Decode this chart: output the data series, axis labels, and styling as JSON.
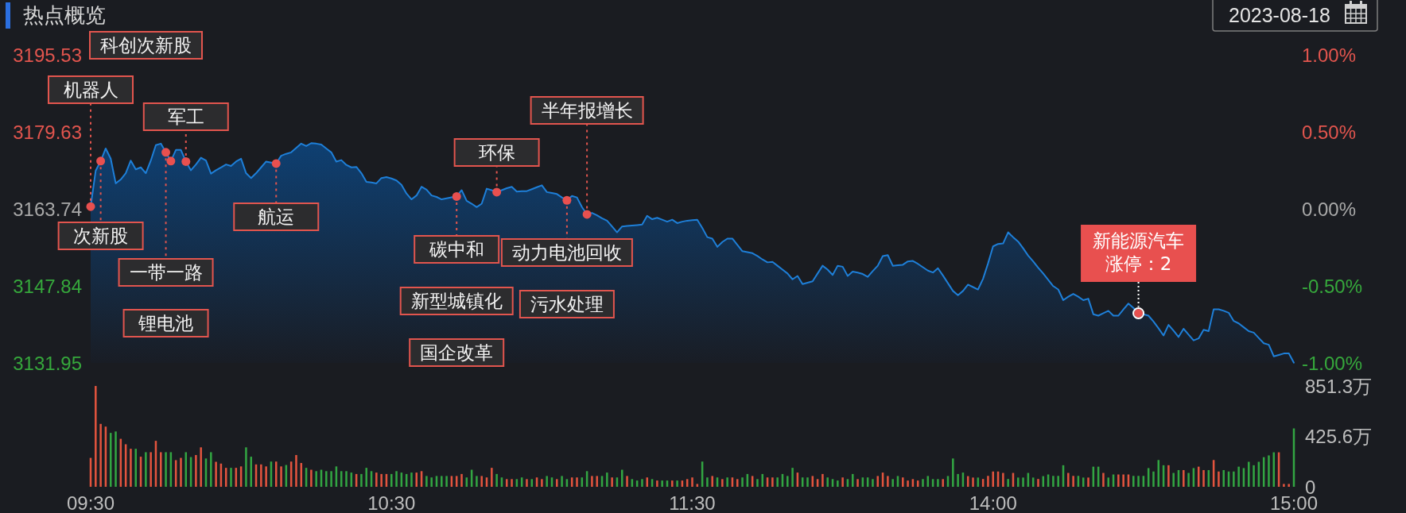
{
  "chart_data": [
    {
      "type": "area",
      "title": "热点概览",
      "subtitle": "2023-08-18",
      "tick_labels": "y",
      "categories": [
        null,
        null,
        null,
        null,
        null,
        null,
        null,
        null,
        null,
        null,
        null,
        null,
        null,
        null,
        null,
        null,
        null,
        null,
        null,
        null,
        null,
        null,
        null,
        null,
        null,
        null,
        null,
        null,
        null,
        null,
        null,
        null,
        null,
        null,
        null,
        null,
        null,
        null,
        null,
        null,
        null,
        null,
        null,
        null,
        null,
        null,
        null,
        null,
        null,
        null,
        null,
        null,
        null,
        null,
        null,
        null,
        null,
        null,
        null,
        null,
        null,
        null,
        null,
        null,
        null,
        null,
        null,
        null,
        null,
        null,
        null,
        null,
        null,
        null,
        null,
        null,
        null,
        null,
        null,
        null,
        null,
        null,
        null,
        null,
        null,
        null,
        null,
        null,
        null,
        null,
        null,
        null,
        null,
        null,
        null,
        null,
        null,
        null,
        null,
        null,
        null,
        null,
        null,
        null,
        null,
        null,
        null,
        null,
        null,
        null,
        null,
        null,
        null,
        null,
        null,
        null,
        null,
        null,
        null,
        null,
        null,
        null,
        null,
        null,
        null,
        null,
        null,
        null,
        null,
        null,
        null,
        null,
        null,
        null,
        null,
        null,
        null,
        null,
        null,
        null,
        null,
        null,
        null,
        null,
        null,
        null,
        null,
        null,
        null,
        null,
        null,
        null,
        null,
        null,
        null,
        null,
        null,
        null,
        null,
        null,
        null,
        null,
        null,
        null,
        null,
        null,
        null,
        null,
        null,
        null,
        null,
        null,
        null,
        null,
        null,
        null,
        null,
        null,
        null,
        null,
        null,
        null,
        null,
        null,
        null,
        null,
        null,
        null,
        null,
        null,
        null,
        null,
        null,
        null,
        null,
        null,
        null,
        null,
        null,
        null,
        null,
        null,
        null,
        null,
        null,
        null,
        null,
        null,
        null,
        null,
        null,
        null,
        null,
        null,
        null,
        null,
        null,
        null,
        null,
        null,
        null,
        null,
        null,
        null,
        null,
        null,
        null,
        null,
        null,
        null,
        null,
        null,
        null,
        null,
        null,
        null,
        null,
        null,
        null,
        null,
        null
      ],
      "ylim": [
        3131.95,
        3195.53
      ],
      "yticks": [
        3131.95,
        3147.84,
        3163.74,
        3179.63,
        3195.53
      ],
      "y2lim": [
        -1,
        1
      ],
      "y2ticks": [
        {
          "value": -1,
          "label": "-1.00%"
        },
        {
          "value": -0.5,
          "label": "-0.50%"
        },
        {
          "value": 0,
          "label": "0.00%"
        },
        {
          "value": 0.5,
          "label": "0.50%"
        },
        {
          "value": 1,
          "label": "1.00%"
        }
      ],
      "series": [
        {
          "color": "#1e7fd8",
          "values": [
            3164.2,
            3171.6,
            3173.6,
            3176.2,
            3174.1,
            3169.0,
            3169.8,
            3171.1,
            3173.7,
            3171.9,
            3172.3,
            3171.1,
            3173.7,
            3176.9,
            3177.2,
            3175.4,
            3173.6,
            3175.9,
            3175.9,
            3173.5,
            3171.7,
            3172.9,
            3174.3,
            3173.7,
            3171.0,
            3171.7,
            3172.3,
            3172.9,
            3172.6,
            3173.5,
            3174.1,
            3171.1,
            3170.1,
            3171.1,
            3172.3,
            3173.5,
            3173.3,
            3173.1,
            3174.7,
            3175.1,
            3175.4,
            3176.3,
            3177.2,
            3176.7,
            3177.3,
            3177.2,
            3177.0,
            3176.2,
            3175.4,
            3173.5,
            3173.8,
            3172.8,
            3172.3,
            3172.4,
            3171.1,
            3169.3,
            3169.2,
            3169.0,
            3170.1,
            3170.3,
            3170.0,
            3169.6,
            3168.7,
            3166.9,
            3165.7,
            3166.5,
            3168.3,
            3167.7,
            3166.5,
            3166.2,
            3165.7,
            3165.9,
            3166.1,
            3166.3,
            3167.6,
            3165.4,
            3164.8,
            3164.1,
            3164.8,
            3167.9,
            3167.6,
            3167.2,
            3167.6,
            3168.0,
            3168.3,
            3167.3,
            3167.4,
            3167.4,
            3167.8,
            3168.2,
            3168.6,
            3167.2,
            3167.0,
            3166.8,
            3166.1,
            3165.5,
            3166.4,
            3166.1,
            3164.1,
            3162.6,
            3162.9,
            3162.4,
            3161.8,
            3161.3,
            3160.1,
            3158.9,
            3160.1,
            3160.2,
            3160.3,
            3160.4,
            3160.5,
            3162.3,
            3161.6,
            3161.9,
            3161.5,
            3161.1,
            3161.5,
            3160.8,
            3161.1,
            3161.3,
            3161.4,
            3161.5,
            3159.8,
            3157.9,
            3157.6,
            3155.9,
            3156.9,
            3157.6,
            3157.6,
            3156.3,
            3155.0,
            3154.8,
            3154.6,
            3154.0,
            3153.3,
            3152.7,
            3152.8,
            3152.0,
            3151.2,
            3150.4,
            3149.2,
            3149.9,
            3148.2,
            3148.5,
            3148.8,
            3150.4,
            3152.0,
            3151.2,
            3150.1,
            3152.0,
            3151.8,
            3149.9,
            3150.8,
            3150.6,
            3150.3,
            3149.7,
            3150.9,
            3152.0,
            3154.0,
            3154.2,
            3152.0,
            3152.1,
            3152.2,
            3152.9,
            3153.0,
            3152.4,
            3151.7,
            3151.0,
            3150.6,
            3151.5,
            3150.0,
            3148.4,
            3146.8,
            3145.9,
            3146.8,
            3148.1,
            3147.6,
            3147.1,
            3149.3,
            3152.5,
            3156.0,
            3156.5,
            3156.6,
            3158.9,
            3157.9,
            3157.0,
            3155.6,
            3154.1,
            3152.9,
            3151.6,
            3150.4,
            3149.1,
            3147.8,
            3147.1,
            3144.9,
            3145.6,
            3146.2,
            3145.6,
            3144.9,
            3145.2,
            3142.0,
            3141.7,
            3142.2,
            3142.7,
            3141.7,
            3141.7,
            3143.0,
            3144.2,
            3143.3,
            3142.2,
            3142.0,
            3141.7,
            3140.5,
            3139.1,
            3137.6,
            3139.8,
            3138.6,
            3137.3,
            3139.0,
            3137.8,
            3136.6,
            3137.0,
            3138.8,
            3138.5,
            3143.0,
            3143.0,
            3142.7,
            3142.3,
            3140.6,
            3140.1,
            3139.3,
            3138.5,
            3138.2,
            3137.1,
            3136.0,
            3135.7,
            3133.3,
            3133.6,
            3133.9,
            3133.9,
            3132.0
          ]
        },
        {
          "type": "scatter",
          "color": "#e8504f",
          "marker": "circle",
          "values": [
            3164.2,
            null,
            3173.6,
            null,
            null,
            null,
            null,
            null,
            null,
            null,
            null,
            null,
            null,
            null,
            null,
            3175.4,
            3173.6,
            null,
            null,
            3173.5,
            null,
            null,
            null,
            null,
            null,
            null,
            null,
            null,
            null,
            null,
            null,
            null,
            null,
            null,
            null,
            null,
            null,
            3173.1,
            null,
            null,
            null,
            null,
            null,
            null,
            null,
            null,
            null,
            null,
            null,
            null,
            null,
            null,
            null,
            null,
            null,
            null,
            null,
            null,
            null,
            null,
            null,
            null,
            null,
            null,
            null,
            null,
            null,
            null,
            null,
            null,
            null,
            null,
            null,
            3166.3,
            null,
            null,
            null,
            null,
            null,
            null,
            null,
            3167.2,
            null,
            null,
            null,
            null,
            null,
            null,
            null,
            null,
            null,
            null,
            null,
            null,
            null,
            3165.5,
            null,
            null,
            null,
            3162.6,
            null,
            null,
            null,
            null,
            null,
            null,
            null,
            null,
            null,
            null,
            null,
            null,
            null,
            null,
            null,
            null,
            null,
            null,
            null,
            null,
            null,
            null,
            null,
            null,
            null,
            null,
            null,
            null,
            null,
            null,
            null,
            null,
            null,
            null,
            null,
            null,
            null,
            null,
            null,
            null,
            null,
            null,
            null,
            null,
            null,
            null,
            null,
            null,
            null,
            null,
            null,
            null,
            null,
            null,
            null,
            null,
            null,
            null,
            null,
            null,
            null,
            null,
            null,
            null,
            null,
            null,
            null,
            null,
            null,
            null,
            null,
            null,
            null,
            null,
            null,
            null,
            null,
            null,
            null,
            null,
            null,
            null,
            null,
            null,
            null,
            null,
            null,
            null,
            null,
            null,
            null,
            null,
            null,
            null,
            null,
            null,
            null,
            null,
            null,
            null,
            null,
            null,
            null,
            null,
            null,
            null,
            null,
            null,
            null,
            3142.2,
            null,
            null,
            null,
            null,
            null,
            null,
            null,
            null,
            null,
            null,
            null,
            null,
            null,
            null,
            null,
            null,
            null,
            null,
            null,
            null,
            null,
            null,
            null,
            null,
            null,
            null,
            null,
            null,
            null,
            null,
            null
          ]
        }
      ],
      "annotations": [
        {
          "text": "机器人",
          "y": 3164.2
        },
        "科创次新股",
        {
          "text": "次新股",
          "y": 3173.6
        },
        {
          "text": "一带一路",
          "y": 3175.4
        },
        "锂电池",
        {
          "text": "军工",
          "y": 3173.5
        },
        {
          "text": "航运",
          "y": 3173.1
        },
        {
          "text": "碳中和",
          "y": 3166.3
        },
        "新型城镇化",
        "国企改革",
        {
          "text": "环保",
          "y": 3167.2
        },
        {
          "text": "动力电池回收",
          "y": 3165.5
        },
        "污水处理",
        {
          "text": "半年报增长",
          "y": 3162.6
        },
        {
          "text": "新能源汽车涨停：2",
          "y": 3142.2
        }
      ]
    },
    {
      "type": "bar",
      "categories": [
        "09:30",
        null,
        null,
        null,
        null,
        null,
        null,
        null,
        null,
        null,
        null,
        null,
        null,
        null,
        null,
        null,
        null,
        null,
        null,
        null,
        null,
        null,
        null,
        null,
        null,
        null,
        null,
        null,
        null,
        null,
        null,
        null,
        null,
        null,
        null,
        null,
        null,
        null,
        null,
        null,
        null,
        null,
        null,
        null,
        null,
        null,
        null,
        null,
        null,
        null,
        null,
        null,
        null,
        null,
        null,
        null,
        null,
        null,
        null,
        null,
        "10:30",
        null,
        null,
        null,
        null,
        null,
        null,
        null,
        null,
        null,
        null,
        null,
        null,
        null,
        null,
        null,
        null,
        null,
        null,
        null,
        null,
        null,
        null,
        null,
        null,
        null,
        null,
        null,
        null,
        null,
        null,
        null,
        null,
        null,
        null,
        null,
        null,
        null,
        null,
        null,
        null,
        null,
        null,
        null,
        null,
        null,
        null,
        null,
        null,
        null,
        null,
        null,
        null,
        null,
        null,
        null,
        null,
        null,
        null,
        null,
        "11:30",
        null,
        null,
        null,
        null,
        null,
        null,
        null,
        null,
        null,
        null,
        null,
        null,
        null,
        null,
        null,
        null,
        null,
        null,
        null,
        null,
        null,
        null,
        null,
        null,
        null,
        null,
        null,
        null,
        null,
        null,
        null,
        null,
        null,
        null,
        null,
        null,
        null,
        null,
        null,
        null,
        null,
        null,
        null,
        null,
        null,
        null,
        null,
        null,
        null,
        null,
        null,
        null,
        null,
        null,
        null,
        null,
        null,
        null,
        null,
        "14:00",
        null,
        null,
        null,
        null,
        null,
        null,
        null,
        null,
        null,
        null,
        null,
        null,
        null,
        null,
        null,
        null,
        null,
        null,
        null,
        null,
        null,
        null,
        null,
        null,
        null,
        null,
        null,
        null,
        null,
        null,
        null,
        null,
        null,
        null,
        null,
        null,
        null,
        null,
        null,
        null,
        null,
        null,
        null,
        null,
        null,
        null,
        null,
        null,
        null,
        null,
        null,
        null,
        null,
        null,
        null,
        null,
        null,
        null,
        null,
        "15:00"
      ],
      "ylim": [
        0,
        851.3
      ],
      "yticks": [
        0,
        {
          "value": 425.6,
          "label": "425.6万"
        },
        {
          "value": 851.3,
          "label": "851.3万"
        }
      ],
      "values": [
        244,
        851,
        531,
        508,
        455,
        467,
        405,
        359,
        321,
        321,
        254,
        292,
        292,
        388,
        292,
        292,
        292,
        225,
        244,
        292,
        251,
        268,
        333,
        239,
        292,
        211,
        196,
        160,
        160,
        160,
        172,
        333,
        254,
        189,
        189,
        172,
        213,
        213,
        172,
        184,
        213,
        268,
        201,
        160,
        144,
        132,
        144,
        132,
        132,
        172,
        132,
        132,
        120,
        108,
        108,
        160,
        132,
        120,
        108,
        108,
        108,
        132,
        120,
        108,
        120,
        120,
        132,
        91,
        79,
        91,
        91,
        91,
        91,
        91,
        108,
        79,
        144,
        91,
        91,
        79,
        160,
        108,
        79,
        65,
        65,
        65,
        79,
        65,
        65,
        79,
        65,
        91,
        79,
        65,
        91,
        65,
        79,
        79,
        79,
        132,
        91,
        91,
        91,
        120,
        79,
        79,
        144,
        91,
        65,
        53,
        65,
        79,
        65,
        53,
        53,
        53,
        53,
        53,
        53,
        65,
        79,
        24,
        213,
        79,
        91,
        79,
        65,
        79,
        79,
        65,
        79,
        108,
        91,
        65,
        108,
        79,
        79,
        79,
        108,
        91,
        160,
        120,
        79,
        79,
        91,
        65,
        108,
        79,
        65,
        53,
        79,
        65,
        108,
        65,
        79,
        79,
        65,
        91,
        120,
        91,
        65,
        91,
        79,
        53,
        65,
        53,
        65,
        91,
        65,
        65,
        65,
        91,
        239,
        108,
        120,
        90,
        78,
        78,
        66,
        92,
        129,
        129,
        117,
        66,
        117,
        78,
        78,
        117,
        78,
        66,
        90,
        104,
        92,
        92,
        182,
        117,
        92,
        92,
        78,
        78,
        170,
        170,
        117,
        78,
        104,
        104,
        104,
        104,
        92,
        92,
        92,
        158,
        129,
        226,
        182,
        182,
        117,
        141,
        141,
        117,
        158,
        170,
        141,
        141,
        226,
        129,
        141,
        129,
        129,
        170,
        158,
        211,
        182,
        211,
        250,
        265,
        291,
        291,
        24,
        24,
        493
      ],
      "colors": [
        "#e3543e",
        "#e3543e",
        "#e3543e",
        "#e3543e",
        "#32a542",
        "#32a542",
        "#e3543e",
        "#e3543e",
        "#e3543e",
        "#32a542",
        "#e3543e",
        "#32a542",
        "#e3543e",
        "#e3543e",
        "#e3543e",
        "#32a542",
        "#32a542",
        "#e3543e",
        "#e3543e",
        "#32a542",
        "#32a542",
        "#e3543e",
        "#e3543e",
        "#32a542",
        "#32a542",
        "#e3543e",
        "#e3543e",
        "#e3543e",
        "#32a542",
        "#e3543e",
        "#e3543e",
        "#32a542",
        "#32a542",
        "#e3543e",
        "#e3543e",
        "#e3543e",
        "#32a542",
        "#e3543e",
        "#e3543e",
        "#32a542",
        "#e3543e",
        "#e3543e",
        "#e3543e",
        "#32a542",
        "#e3543e",
        "#32a542",
        "#32a542",
        "#32a542",
        "#32a542",
        "#32a542",
        "#32a542",
        "#32a542",
        "#32a542",
        "#e3543e",
        "#32a542",
        "#32a542",
        "#32a542",
        "#e3543e",
        "#e3543e",
        "#e3543e",
        "#32a542",
        "#32a542",
        "#32a542",
        "#32a542",
        "#32a542",
        "#e3543e",
        "#e3543e",
        "#32a542",
        "#32a542",
        "#32a542",
        "#32a542",
        "#32a542",
        "#e3543e",
        "#e3543e",
        "#e3543e",
        "#32a542",
        "#32a542",
        "#32a542",
        "#e3543e",
        "#e3543e",
        "#e3543e",
        "#32a542",
        "#32a542",
        "#e3543e",
        "#e3543e",
        "#32a542",
        "#32a542",
        "#e3543e",
        "#32a542",
        "#e3543e",
        "#e3543e",
        "#32a542",
        "#32a542",
        "#e3543e",
        "#32a542",
        "#32a542",
        "#e3543e",
        "#e3543e",
        "#32a542",
        "#32a542",
        "#e3543e",
        "#e3543e",
        "#32a542",
        "#32a542",
        "#e3543e",
        "#32a542",
        "#32a542",
        "#e3543e",
        "#32a542",
        "#32a542",
        "#32a542",
        "#e3543e",
        "#32a542",
        "#e3543e",
        "#32a542",
        "#32a542",
        "#e3543e",
        "#32a542",
        "#e3543e",
        "#e3543e",
        "#e3543e",
        "#e3543e",
        "#32a542",
        "#32a542",
        "#e3543e",
        "#32a542",
        "#e3543e",
        "#32a542",
        "#e3543e",
        "#e3543e",
        "#32a542",
        "#32a542",
        "#e3543e",
        "#32a542",
        "#32a542",
        "#e3543e",
        "#e3543e",
        "#32a542",
        "#32a542",
        "#32a542",
        "#32a542",
        "#e3543e",
        "#32a542",
        "#32a542",
        "#e3543e",
        "#e3543e",
        "#e3543e",
        "#32a542",
        "#32a542",
        "#32a542",
        "#e3543e",
        "#32a542",
        "#32a542",
        "#e3543e",
        "#32a542",
        "#32a542",
        "#32a542",
        "#e3543e",
        "#e3543e",
        "#e3543e",
        "#32a542",
        "#32a542",
        "#e3543e",
        "#e3543e",
        "#e3543e",
        "#e3543e",
        "#32a542",
        "#32a542",
        "#32a542",
        "#32a542",
        "#e3543e",
        "#32a542",
        "#32a542",
        "#32a542",
        "#32a542",
        "#e3543e",
        "#e3543e",
        "#32a542",
        "#e3543e",
        "#e3543e",
        "#e3543e",
        "#e3543e",
        "#e3543e",
        "#32a542",
        "#e3543e",
        "#32a542",
        "#32a542",
        "#32a542",
        "#32a542",
        "#e3543e",
        "#32a542",
        "#32a542",
        "#32a542",
        "#32a542",
        "#32a542",
        "#e3543e",
        "#e3543e",
        "#32a542",
        "#32a542",
        "#e3543e",
        "#32a542",
        "#32a542",
        "#e3543e",
        "#32a542",
        "#32a542",
        "#e3543e",
        "#e3543e",
        "#e3543e",
        "#32a542",
        "#32a542",
        "#32a542",
        "#32a542",
        "#32a542",
        "#32a542",
        "#32a542",
        "#e3543e",
        "#32a542",
        "#32a542",
        "#e3543e",
        "#32a542",
        "#32a542",
        "#e3543e",
        "#e3543e",
        "#32a542",
        "#e3543e",
        "#e3543e",
        "#32a542",
        "#32a542",
        "#32a542",
        "#32a542",
        "#32a542",
        "#32a542",
        "#32a542",
        "#32a542",
        "#32a542",
        "#32a542",
        "#32a542",
        "#e3543e",
        "#e3543e",
        "#e3543e",
        "#32a542"
      ]
    }
  ]
}
